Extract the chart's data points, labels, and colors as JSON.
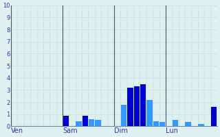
{
  "background_color": "#dff0f0",
  "grid_color_h": "#c8d8d8",
  "grid_color_v": "#c8d8d8",
  "bar_color_dark": "#0000cc",
  "bar_color_light": "#3399ff",
  "ylabel_color": "#3333aa",
  "xlabel_color": "#3333aa",
  "separator_color": "#445566",
  "axis_color": "#6688aa",
  "ylim": [
    0,
    10
  ],
  "yticks": [
    0,
    1,
    2,
    3,
    4,
    5,
    6,
    7,
    8,
    9,
    10
  ],
  "day_labels": [
    "Ven",
    "Sam",
    "Dim",
    "Lun"
  ],
  "day_positions": [
    0,
    8,
    16,
    24
  ],
  "n_bars": 32,
  "bars": [
    0,
    0,
    0,
    0,
    0,
    0,
    0,
    0,
    0.85,
    0,
    0.4,
    0.9,
    0.6,
    0.55,
    0,
    0,
    0,
    1.8,
    3.2,
    3.3,
    3.5,
    2.2,
    0.4,
    0.35,
    0,
    0.55,
    0,
    0.35,
    0,
    0.2,
    0,
    1.6
  ],
  "bar_colors": [
    "dark",
    "dark",
    "dark",
    "dark",
    "dark",
    "dark",
    "dark",
    "dark",
    "dark",
    "dark",
    "light",
    "dark",
    "light",
    "light",
    "dark",
    "dark",
    "dark",
    "light",
    "dark",
    "dark",
    "dark",
    "light",
    "light",
    "light",
    "dark",
    "light",
    "dark",
    "light",
    "dark",
    "light",
    "dark",
    "dark"
  ]
}
